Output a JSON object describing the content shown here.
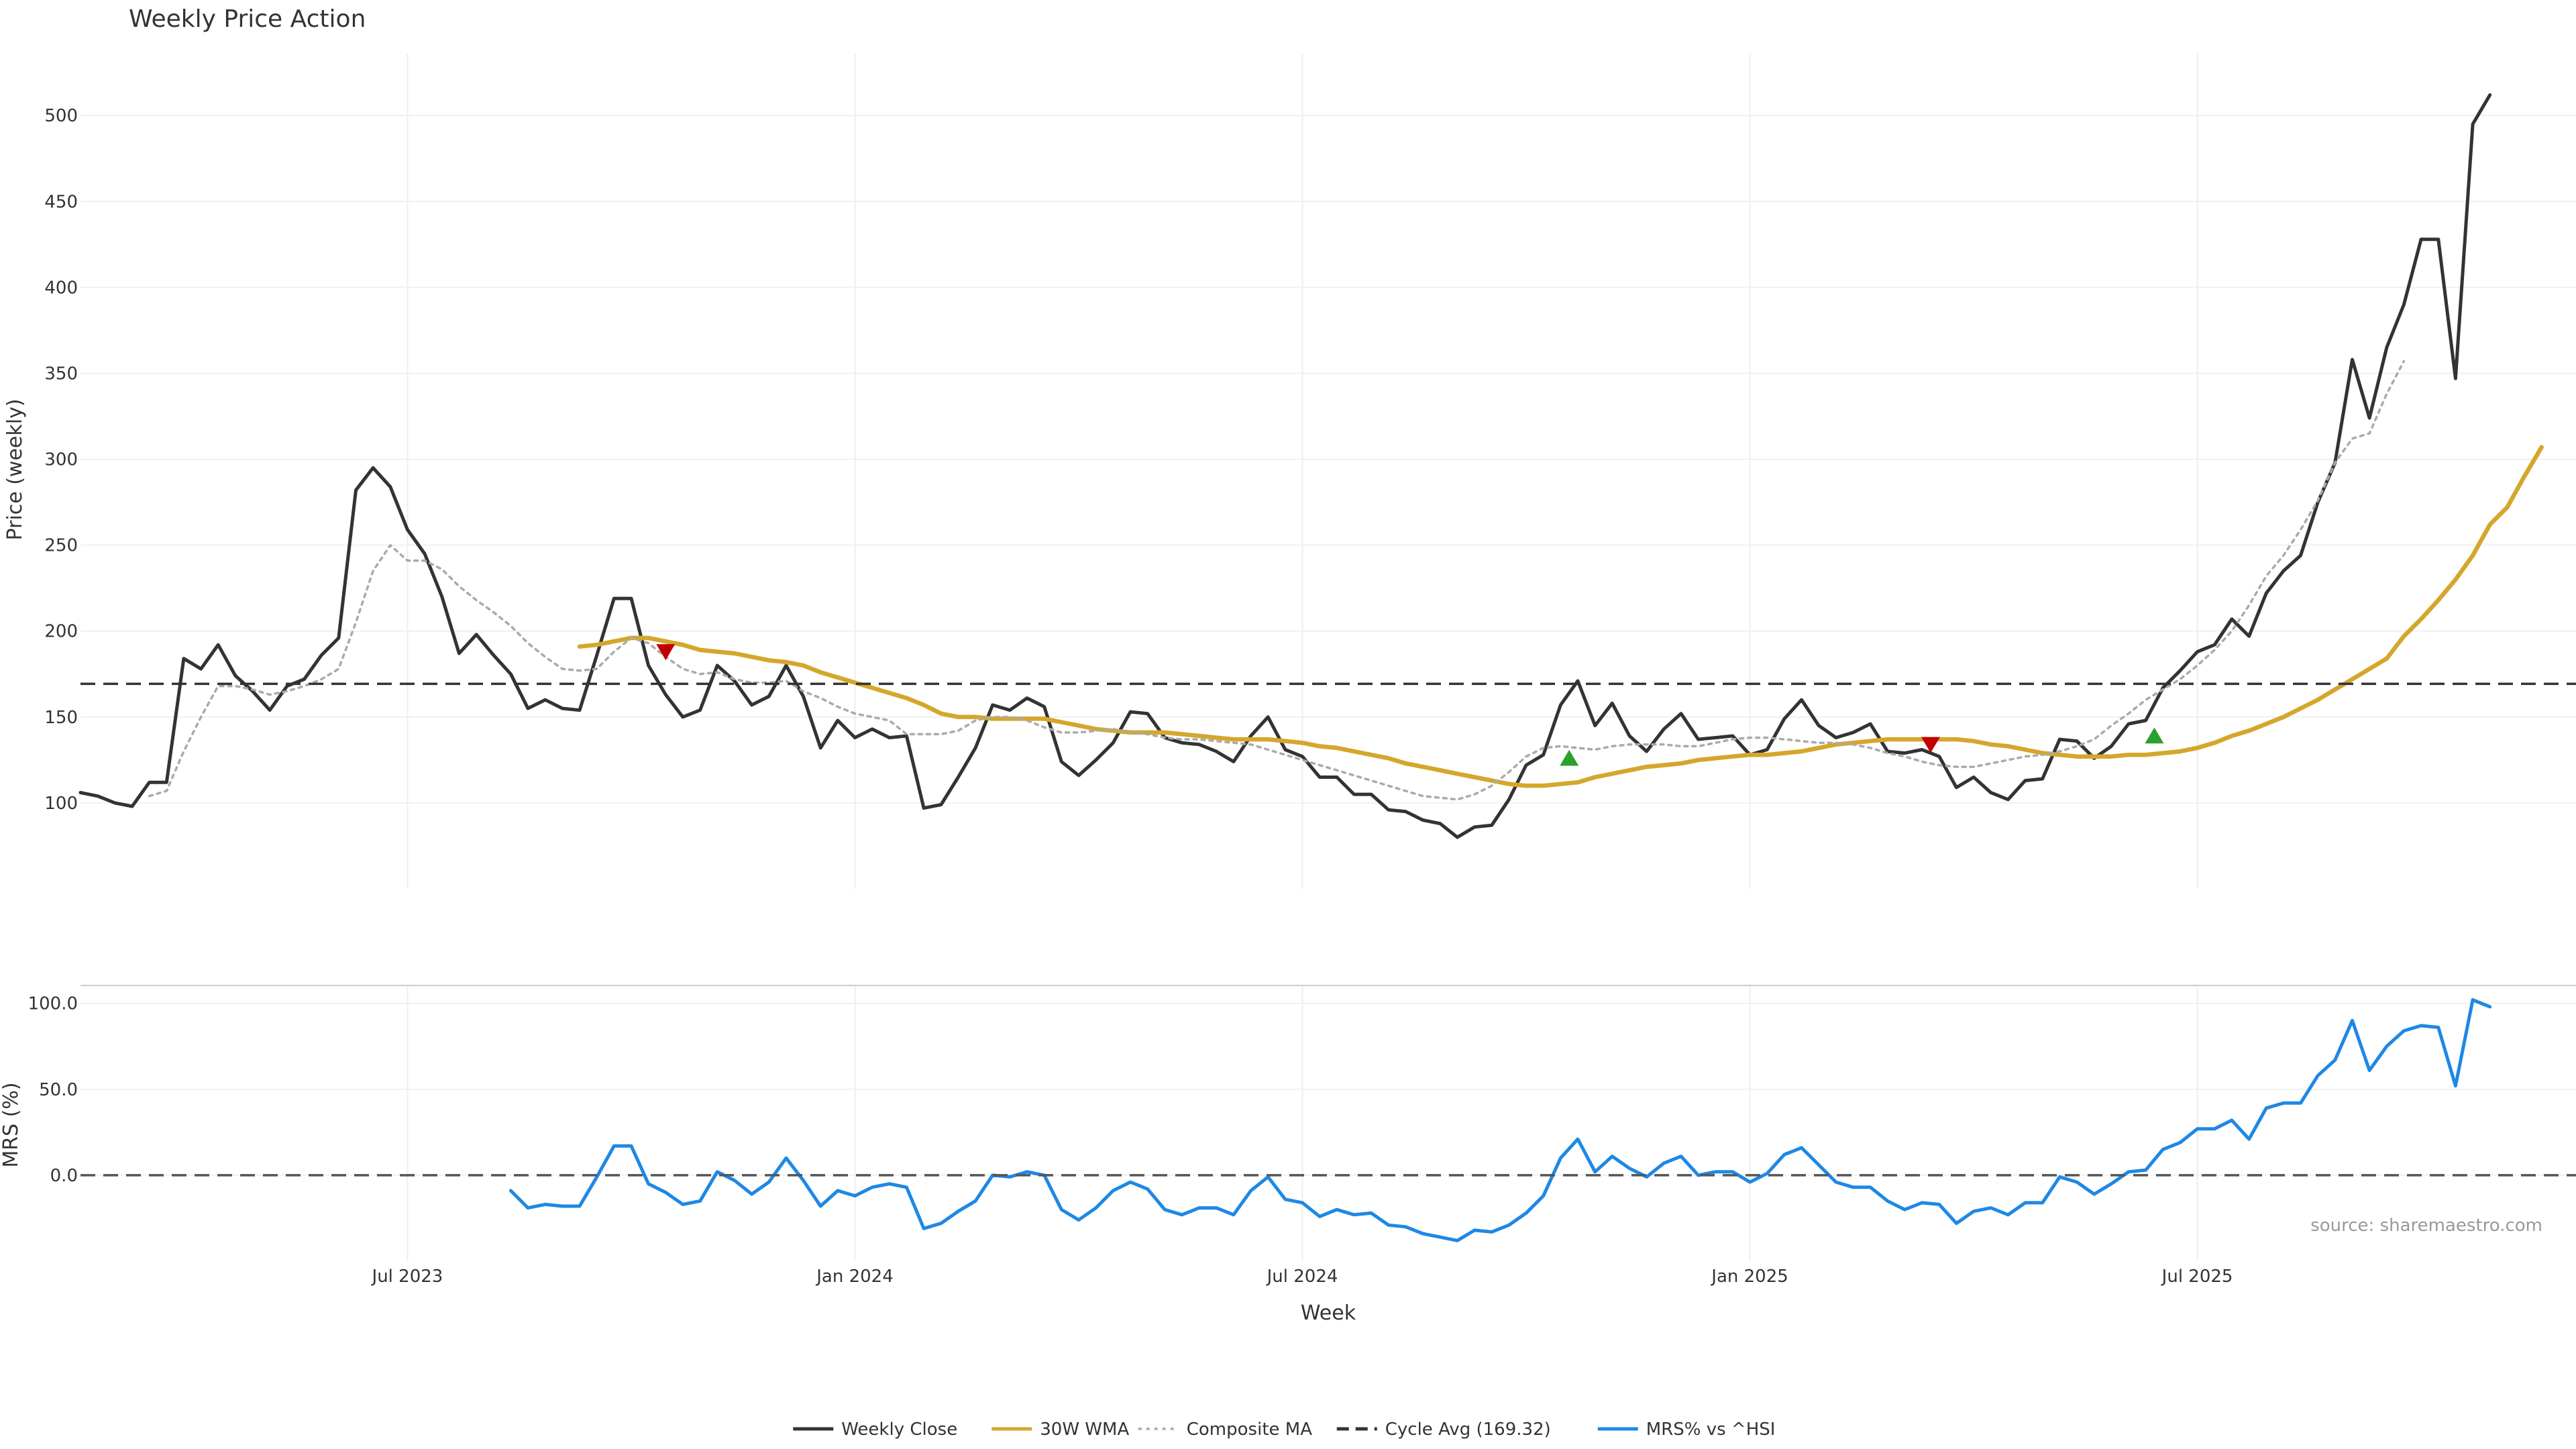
{
  "chart_data": [
    {
      "type": "line",
      "title": "Weekly Price Action",
      "xlabel": "",
      "ylabel": "Price (weekly)",
      "ylim": [
        50,
        536
      ],
      "xlim": [
        0,
        145
      ],
      "yticks": [
        100,
        150,
        200,
        250,
        300,
        350,
        400,
        450,
        500
      ],
      "grid": true,
      "x_ticks": [
        {
          "x": 19,
          "label": "Jul 2023"
        },
        {
          "x": 45,
          "label": "Jan 2024"
        },
        {
          "x": 71,
          "label": "Jul 2024"
        },
        {
          "x": 97,
          "label": "Jan 2025"
        },
        {
          "x": 123,
          "label": "Jul 2025"
        }
      ],
      "series": [
        {
          "name": "Weekly Close",
          "color": "#333333",
          "style": "solid",
          "x_start": 0,
          "values": [
            106,
            104,
            100,
            98,
            112,
            112,
            184,
            178,
            192,
            174,
            165,
            154,
            168,
            172,
            186,
            196,
            282,
            295,
            284,
            259,
            245,
            220,
            187,
            198,
            186,
            175,
            155,
            160,
            155,
            154,
            186,
            219,
            219,
            180,
            163,
            150,
            154,
            180,
            171,
            157,
            162,
            180,
            162,
            132,
            148,
            138,
            143,
            138,
            139,
            97,
            99,
            115,
            132,
            157,
            154,
            161,
            156,
            124,
            116,
            125,
            135,
            153,
            152,
            138,
            135,
            134,
            130,
            124,
            139,
            150,
            131,
            127,
            115,
            115,
            105,
            105,
            96,
            95,
            90,
            88,
            80,
            86,
            87,
            102,
            122,
            128,
            157,
            171,
            145,
            158,
            139,
            130,
            143,
            152,
            137,
            138,
            139,
            128,
            131,
            149,
            160,
            145,
            138,
            141,
            146,
            130,
            129,
            131,
            127,
            109,
            115,
            106,
            102,
            113,
            114,
            137,
            136,
            126,
            133,
            146,
            148,
            167,
            177,
            188,
            192,
            207,
            197,
            222,
            235,
            244,
            275,
            298,
            358,
            324,
            365,
            390,
            428,
            428,
            347,
            495,
            512
          ]
        },
        {
          "name": "30W WMA",
          "color": "#D4A72C",
          "style": "solid",
          "x_start": 29,
          "values": [
            191,
            192,
            194,
            196,
            196,
            194,
            192,
            189,
            188,
            187,
            185,
            183,
            182,
            180,
            176,
            173,
            170,
            167,
            164,
            161,
            157,
            152,
            150,
            150,
            149,
            149,
            149,
            149,
            147,
            145,
            143,
            142,
            141,
            141,
            141,
            140,
            139,
            138,
            137,
            137,
            137,
            136,
            135,
            133,
            132,
            130,
            128,
            126,
            123,
            121,
            119,
            117,
            115,
            113,
            111,
            110,
            110,
            111,
            112,
            115,
            117,
            119,
            121,
            122,
            123,
            125,
            126,
            127,
            128,
            128,
            129,
            130,
            132,
            134,
            135,
            136,
            137,
            137,
            137,
            137,
            137,
            136,
            134,
            133,
            131,
            129,
            128,
            127,
            127,
            127,
            128,
            128,
            129,
            130,
            132,
            135,
            139,
            142,
            146,
            150,
            155,
            160,
            166,
            172,
            178,
            184,
            197,
            207,
            218,
            230,
            244,
            262,
            272,
            290,
            307
          ]
        },
        {
          "name": "Composite MA",
          "color": "#aaaaaa",
          "style": "dotted",
          "x_start": 4,
          "values": [
            104,
            107,
            130,
            150,
            168,
            168,
            166,
            163,
            165,
            168,
            172,
            178,
            205,
            235,
            250,
            241,
            241,
            236,
            226,
            218,
            211,
            203,
            193,
            185,
            178,
            177,
            178,
            188,
            196,
            193,
            185,
            178,
            175,
            176,
            172,
            170,
            170,
            171,
            165,
            161,
            156,
            152,
            150,
            148,
            140,
            140,
            140,
            142,
            148,
            150,
            150,
            148,
            144,
            141,
            141,
            142,
            143,
            141,
            140,
            138,
            137,
            137,
            136,
            135,
            134,
            131,
            128,
            125,
            122,
            119,
            116,
            113,
            110,
            107,
            104,
            103,
            102,
            105,
            110,
            118,
            127,
            132,
            133,
            132,
            131,
            133,
            134,
            134,
            134,
            133,
            133,
            135,
            137,
            138,
            138,
            137,
            136,
            135,
            135,
            134,
            132,
            129,
            127,
            124,
            122,
            121,
            121,
            123,
            125,
            127,
            128,
            130,
            133,
            137,
            145,
            152,
            160,
            166,
            172,
            180,
            189,
            200,
            215,
            232,
            244,
            259,
            276,
            298,
            312,
            315,
            338,
            357
          ]
        },
        {
          "name": "Cycle Avg (169.32)",
          "color": "#333333",
          "style": "dashed",
          "value": 169.32
        }
      ],
      "annotations": [
        {
          "x": 34,
          "y": 188,
          "marker": "triangle-down",
          "color": "#C00000"
        },
        {
          "x": 86.5,
          "y": 126,
          "marker": "triangle-up",
          "color": "#2CA02C"
        },
        {
          "x": 107.5,
          "y": 134,
          "marker": "triangle-down",
          "color": "#C00000"
        },
        {
          "x": 120.5,
          "y": 139,
          "marker": "triangle-up",
          "color": "#2CA02C"
        }
      ]
    },
    {
      "type": "line",
      "title": "",
      "xlabel": "Week",
      "ylabel": "MRS (%)",
      "ylim": [
        -50,
        110
      ],
      "xlim": [
        0,
        145
      ],
      "yticks": [
        0,
        50,
        100
      ],
      "ytick_labels": [
        "0.0",
        "50.0",
        "100.0"
      ],
      "grid": true,
      "x_ticks": [
        {
          "x": 19,
          "label": "Jul 2023"
        },
        {
          "x": 45,
          "label": "Jan 2024"
        },
        {
          "x": 71,
          "label": "Jul 2024"
        },
        {
          "x": 97,
          "label": "Jan 2025"
        },
        {
          "x": 123,
          "label": "Jul 2025"
        }
      ],
      "series": [
        {
          "name": "MRS% vs ^HSI",
          "color": "#1E88E5",
          "style": "solid",
          "x_start": 25,
          "values": [
            -9,
            -19,
            -17,
            -18,
            -18,
            -1,
            17,
            17,
            -5,
            -10,
            -17,
            -15,
            2,
            -3,
            -11,
            -4,
            10,
            -3,
            -18,
            -9,
            -12,
            -7,
            -5,
            -7,
            -31,
            -28,
            -21,
            -15,
            0,
            -1,
            2,
            0,
            -20,
            -26,
            -19,
            -9,
            -4,
            -8,
            -20,
            -23,
            -19,
            -19,
            -23,
            -9,
            -1,
            -14,
            -16,
            -24,
            -20,
            -23,
            -22,
            -29,
            -30,
            -34,
            -36,
            -38,
            -32,
            -33,
            -29,
            -22,
            -12,
            10,
            21,
            2,
            11,
            4,
            -1,
            7,
            11,
            0,
            2,
            2,
            -4,
            1,
            12,
            16,
            6,
            -4,
            -7,
            -7,
            -15,
            -20,
            -16,
            -17,
            -28,
            -21,
            -19,
            -23,
            -16,
            -16,
            -1,
            -4,
            -11,
            -5,
            2,
            3,
            15,
            19,
            27,
            27,
            32,
            21,
            39,
            42,
            42,
            58,
            67,
            90,
            61,
            75,
            84,
            87,
            86,
            52,
            102,
            98
          ]
        },
        {
          "name": "zero line",
          "color": "#555555",
          "style": "dashed",
          "value": 0
        }
      ],
      "source_note": "source: sharemaestro.com"
    }
  ],
  "legend": [
    {
      "label": "Weekly Close",
      "color": "#333333",
      "style": "solid"
    },
    {
      "label": "30W WMA",
      "color": "#D4A72C",
      "style": "solid"
    },
    {
      "label": "Composite MA",
      "color": "#aaaaaa",
      "style": "dotted"
    },
    {
      "label": "Cycle Avg (169.32)",
      "color": "#333333",
      "style": "dashed"
    },
    {
      "label": "MRS% vs ^HSI",
      "color": "#1E88E5",
      "style": "solid"
    }
  ]
}
